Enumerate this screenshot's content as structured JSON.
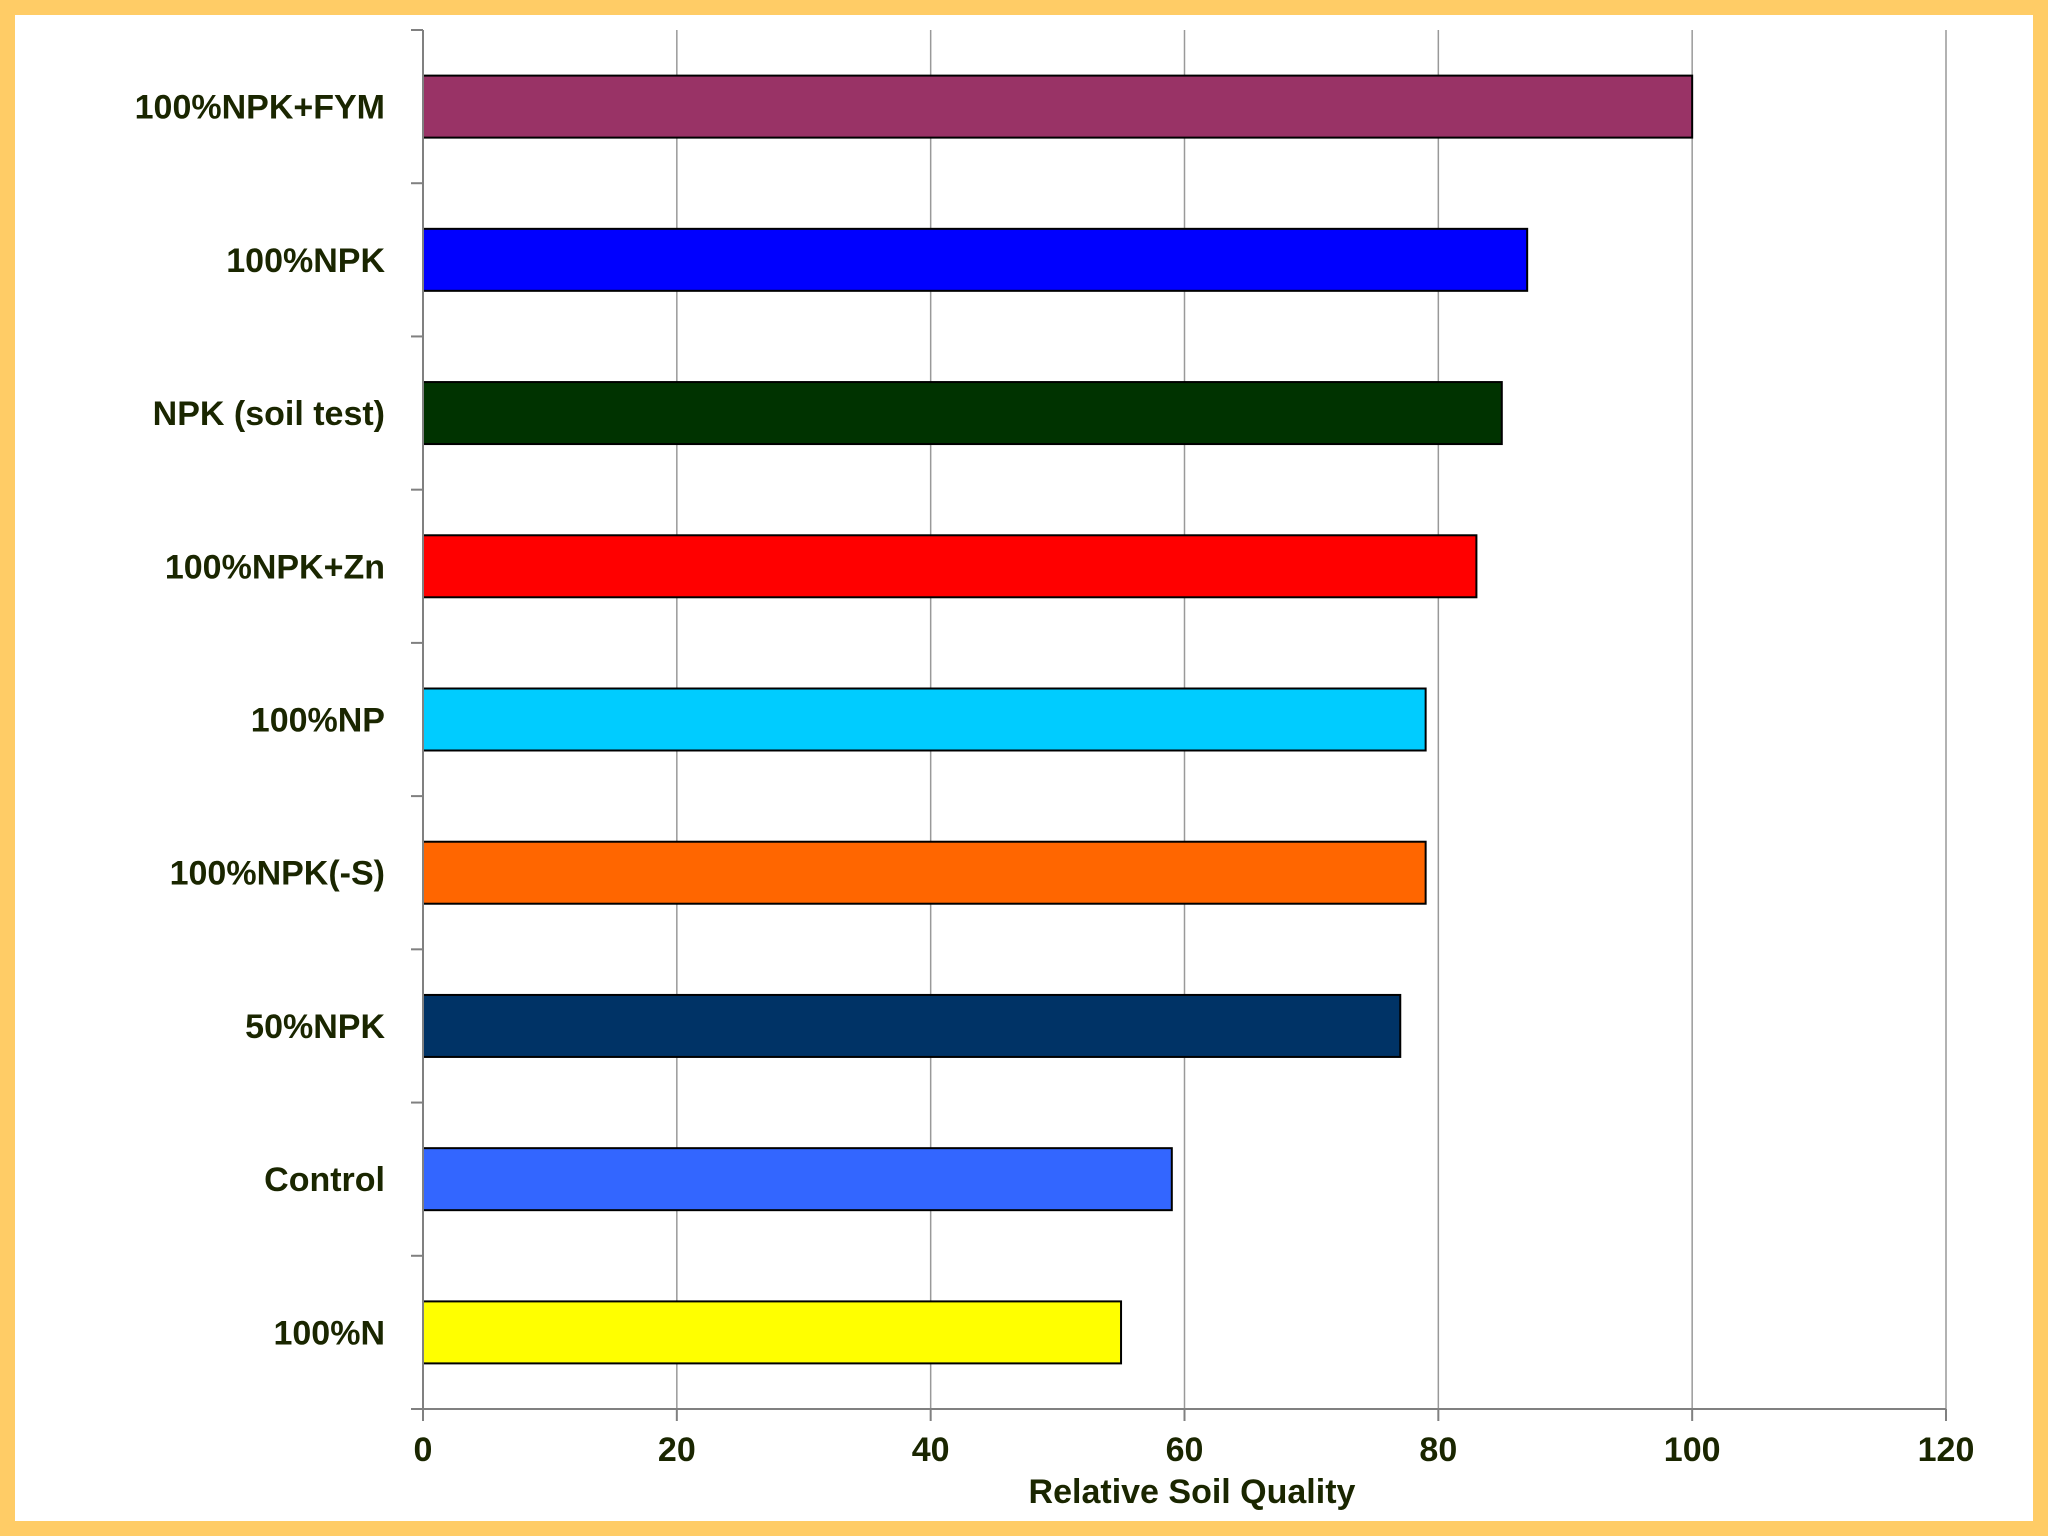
{
  "chart_data": {
    "type": "bar",
    "orientation": "horizontal",
    "categories": [
      "100%NPK+FYM",
      "100%NPK",
      "NPK (soil test)",
      "100%NPK+Zn",
      "100%NP",
      "100%NPK(-S)",
      "50%NPK",
      "Control",
      "100%N"
    ],
    "values": [
      100,
      87,
      85,
      83,
      79,
      79,
      77,
      59,
      55
    ],
    "colors": [
      "#993366",
      "#0000ff",
      "#003300",
      "#ff0000",
      "#00ccff",
      "#ff6600",
      "#003366",
      "#3366ff",
      "#ffff00"
    ],
    "xlabel": "Relative Soil Quality",
    "ylabel": "",
    "xlim": [
      0,
      120
    ],
    "xticks": [
      0,
      20,
      40,
      60,
      80,
      100,
      120
    ],
    "xtick_labels": [
      "0",
      "20",
      "40",
      "60",
      "80",
      "100",
      "120"
    ],
    "grid": "vertical",
    "legend": "none"
  },
  "style": {
    "background": "#ffcc66",
    "plot_background": "#ffffff",
    "gridline_color": "#999999",
    "axis_color": "#808080",
    "text_color": "#1a2600",
    "bar_outline": "#000000"
  }
}
